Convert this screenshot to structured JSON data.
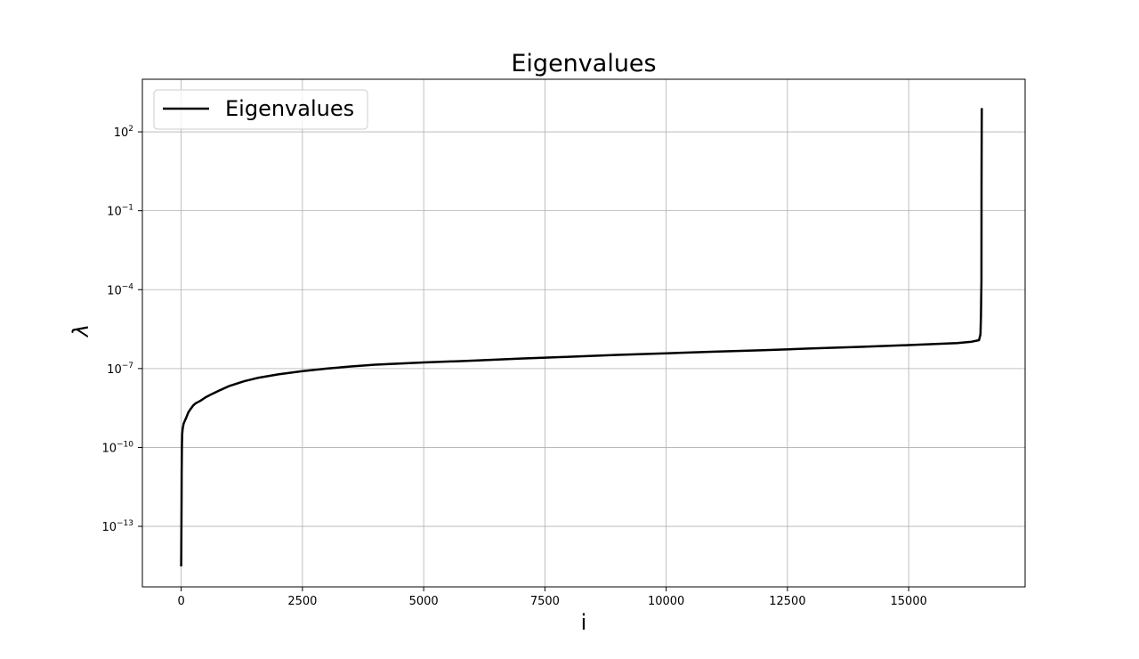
{
  "chart_data": {
    "type": "line",
    "title": "Eigenvalues",
    "xlabel": "i",
    "ylabel": "λ",
    "x_scale": "linear",
    "y_scale": "log",
    "xlim": [
      -800,
      17400
    ],
    "ylim": [
      5e-16,
      10000.0
    ],
    "x_ticks": [
      {
        "value": 0,
        "label": "0"
      },
      {
        "value": 2500,
        "label": "2500"
      },
      {
        "value": 5000,
        "label": "5000"
      },
      {
        "value": 7500,
        "label": "7500"
      },
      {
        "value": 10000,
        "label": "10000"
      },
      {
        "value": 12500,
        "label": "12500"
      },
      {
        "value": 15000,
        "label": "15000"
      }
    ],
    "y_ticks": [
      {
        "value": 1e-13,
        "base": "10",
        "exp": "−13"
      },
      {
        "value": 1e-10,
        "base": "10",
        "exp": "−10"
      },
      {
        "value": 1e-07,
        "base": "10",
        "exp": "−7"
      },
      {
        "value": 0.0001,
        "base": "10",
        "exp": "−4"
      },
      {
        "value": 0.1,
        "base": "10",
        "exp": "−1"
      },
      {
        "value": 100,
        "base": "10",
        "exp": "2"
      }
    ],
    "grid": true,
    "legend_position": "top-left",
    "series": [
      {
        "name": "Eigenvalues",
        "color": "#000000",
        "x": [
          0,
          2,
          5,
          8,
          10,
          15,
          20,
          30,
          50,
          100,
          150,
          200,
          250,
          300,
          400,
          500,
          600,
          800,
          1000,
          1300,
          1600,
          2000,
          2500,
          3000,
          3500,
          4000,
          5000,
          6000,
          7000,
          8000,
          9000,
          10000,
          11000,
          12000,
          13000,
          14000,
          15000,
          16000,
          16300,
          16450,
          16480,
          16490,
          16495,
          16500,
          16502,
          16505,
          16507
        ],
        "y": [
          3e-15,
          1e-14,
          1e-13,
          1e-12,
          1e-11,
          1e-10,
          3e-10,
          5e-10,
          8e-10,
          1.3e-09,
          2.2e-09,
          3e-09,
          4e-09,
          4.8e-09,
          6e-09,
          8e-09,
          1e-08,
          1.5e-08,
          2.2e-08,
          3.3e-08,
          4.5e-08,
          6e-08,
          8e-08,
          1e-07,
          1.2e-07,
          1.4e-07,
          1.7e-07,
          2e-07,
          2.4e-07,
          2.8e-07,
          3.3e-07,
          3.8e-07,
          4.4e-07,
          5e-07,
          5.8e-07,
          6.7e-07,
          7.8e-07,
          9.3e-07,
          1.05e-06,
          1.2e-06,
          2e-06,
          1e-05,
          5e-05,
          0.0002,
          1,
          100,
          800
        ]
      }
    ]
  }
}
